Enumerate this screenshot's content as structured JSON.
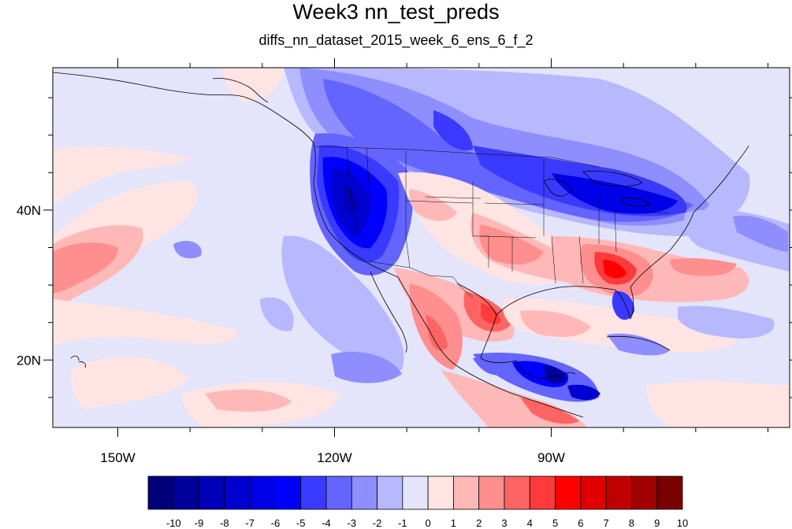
{
  "title": "Week3 nn_test_preds",
  "subtitle": "diffs_nn_dataset_2015_week_6_ens_6_f_2",
  "map": {
    "lon_range": [
      -159,
      -57
    ],
    "lat_range": [
      11,
      59
    ],
    "x_tick_labels": [
      "150W",
      "120W",
      "90W"
    ],
    "x_tick_values": [
      -150,
      -120,
      -90
    ],
    "y_tick_labels": [
      "20N",
      "40N"
    ],
    "y_tick_values": [
      20,
      40
    ]
  },
  "colorbar": {
    "labels": [
      "-10",
      "-9",
      "-8",
      "-7",
      "-6",
      "-5",
      "-4",
      "-3",
      "-2",
      "-1",
      "0",
      "1",
      "2",
      "3",
      "4",
      "5",
      "6",
      "7",
      "8",
      "9",
      "10"
    ],
    "colors": [
      "#00007a",
      "#00009a",
      "#0000b6",
      "#0000d0",
      "#0000e8",
      "#0000ff",
      "#3a3aff",
      "#6464ff",
      "#8e8eff",
      "#b8b8ff",
      "#e4e4fb",
      "#ffe4e4",
      "#ffb8b8",
      "#ff8e8e",
      "#ff6464",
      "#ff3a3a",
      "#ff0000",
      "#e00000",
      "#c00000",
      "#a00000",
      "#7a0000"
    ]
  }
}
